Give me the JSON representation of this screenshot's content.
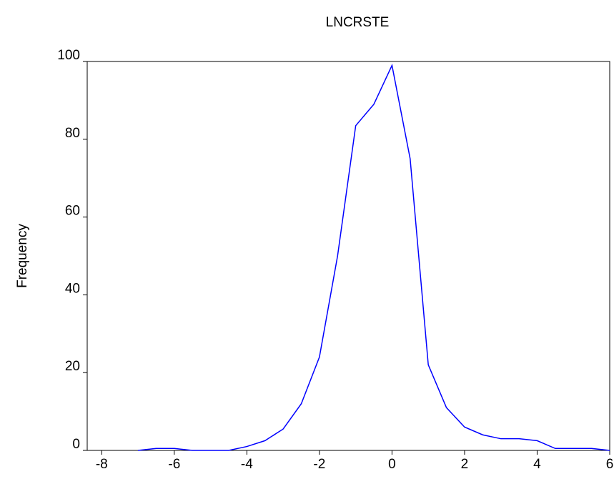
{
  "chart_data": {
    "type": "line",
    "title": "LNCRSTE",
    "y_label": "Frequency",
    "x": [
      -7,
      -6.5,
      -6,
      -5.5,
      -5,
      -4.5,
      -4,
      -3.5,
      -3,
      -2.5,
      -2,
      -1.5,
      -1,
      -0.5,
      0,
      0.5,
      1,
      1.5,
      2,
      2.5,
      3,
      3.5,
      4,
      4.5,
      5,
      5.5,
      6
    ],
    "values": [
      0,
      0.5,
      0.5,
      0,
      0,
      0,
      1,
      2.5,
      5.5,
      12,
      24,
      50,
      83.5,
      89,
      99,
      75,
      22,
      11,
      6,
      4,
      3,
      3,
      2.5,
      0.5,
      0.5,
      0.5,
      0
    ],
    "color": "#0000ff",
    "xlim": [
      -8.4,
      6
    ],
    "ylim": [
      0,
      100
    ],
    "xticks": [
      -8,
      -6,
      -4,
      -2,
      0,
      2,
      4,
      6
    ],
    "yticks": [
      0,
      20,
      40,
      60,
      80,
      100
    ]
  }
}
